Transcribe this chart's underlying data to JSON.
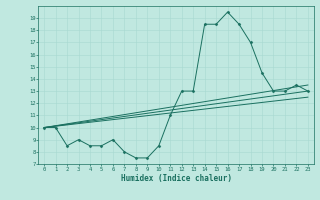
{
  "title": "",
  "xlabel": "Humidex (Indice chaleur)",
  "xlim": [
    -0.5,
    23.5
  ],
  "ylim": [
    7,
    20
  ],
  "yticks": [
    7,
    8,
    9,
    10,
    11,
    12,
    13,
    14,
    15,
    16,
    17,
    18,
    19
  ],
  "xticks": [
    0,
    1,
    2,
    3,
    4,
    5,
    6,
    7,
    8,
    9,
    10,
    11,
    12,
    13,
    14,
    15,
    16,
    17,
    18,
    19,
    20,
    21,
    22,
    23
  ],
  "bg_color": "#c0e8e0",
  "grid_color": "#a8d8d0",
  "line_color": "#1a7060",
  "main_line": {
    "x": [
      0,
      1,
      2,
      3,
      4,
      5,
      6,
      7,
      8,
      9,
      10,
      11,
      12,
      13,
      14,
      15,
      16,
      17,
      18,
      19,
      20,
      21,
      22,
      23
    ],
    "y": [
      10,
      10,
      8.5,
      9,
      8.5,
      8.5,
      9,
      8,
      7.5,
      7.5,
      8.5,
      11,
      13,
      13,
      18.5,
      18.5,
      19.5,
      18.5,
      17,
      14.5,
      13,
      13,
      13.5,
      13
    ]
  },
  "trend_lines": [
    {
      "x": [
        0,
        23
      ],
      "y": [
        10,
        13.5
      ]
    },
    {
      "x": [
        0,
        23
      ],
      "y": [
        10,
        12.5
      ]
    },
    {
      "x": [
        0,
        23
      ],
      "y": [
        10,
        13.0
      ]
    }
  ]
}
